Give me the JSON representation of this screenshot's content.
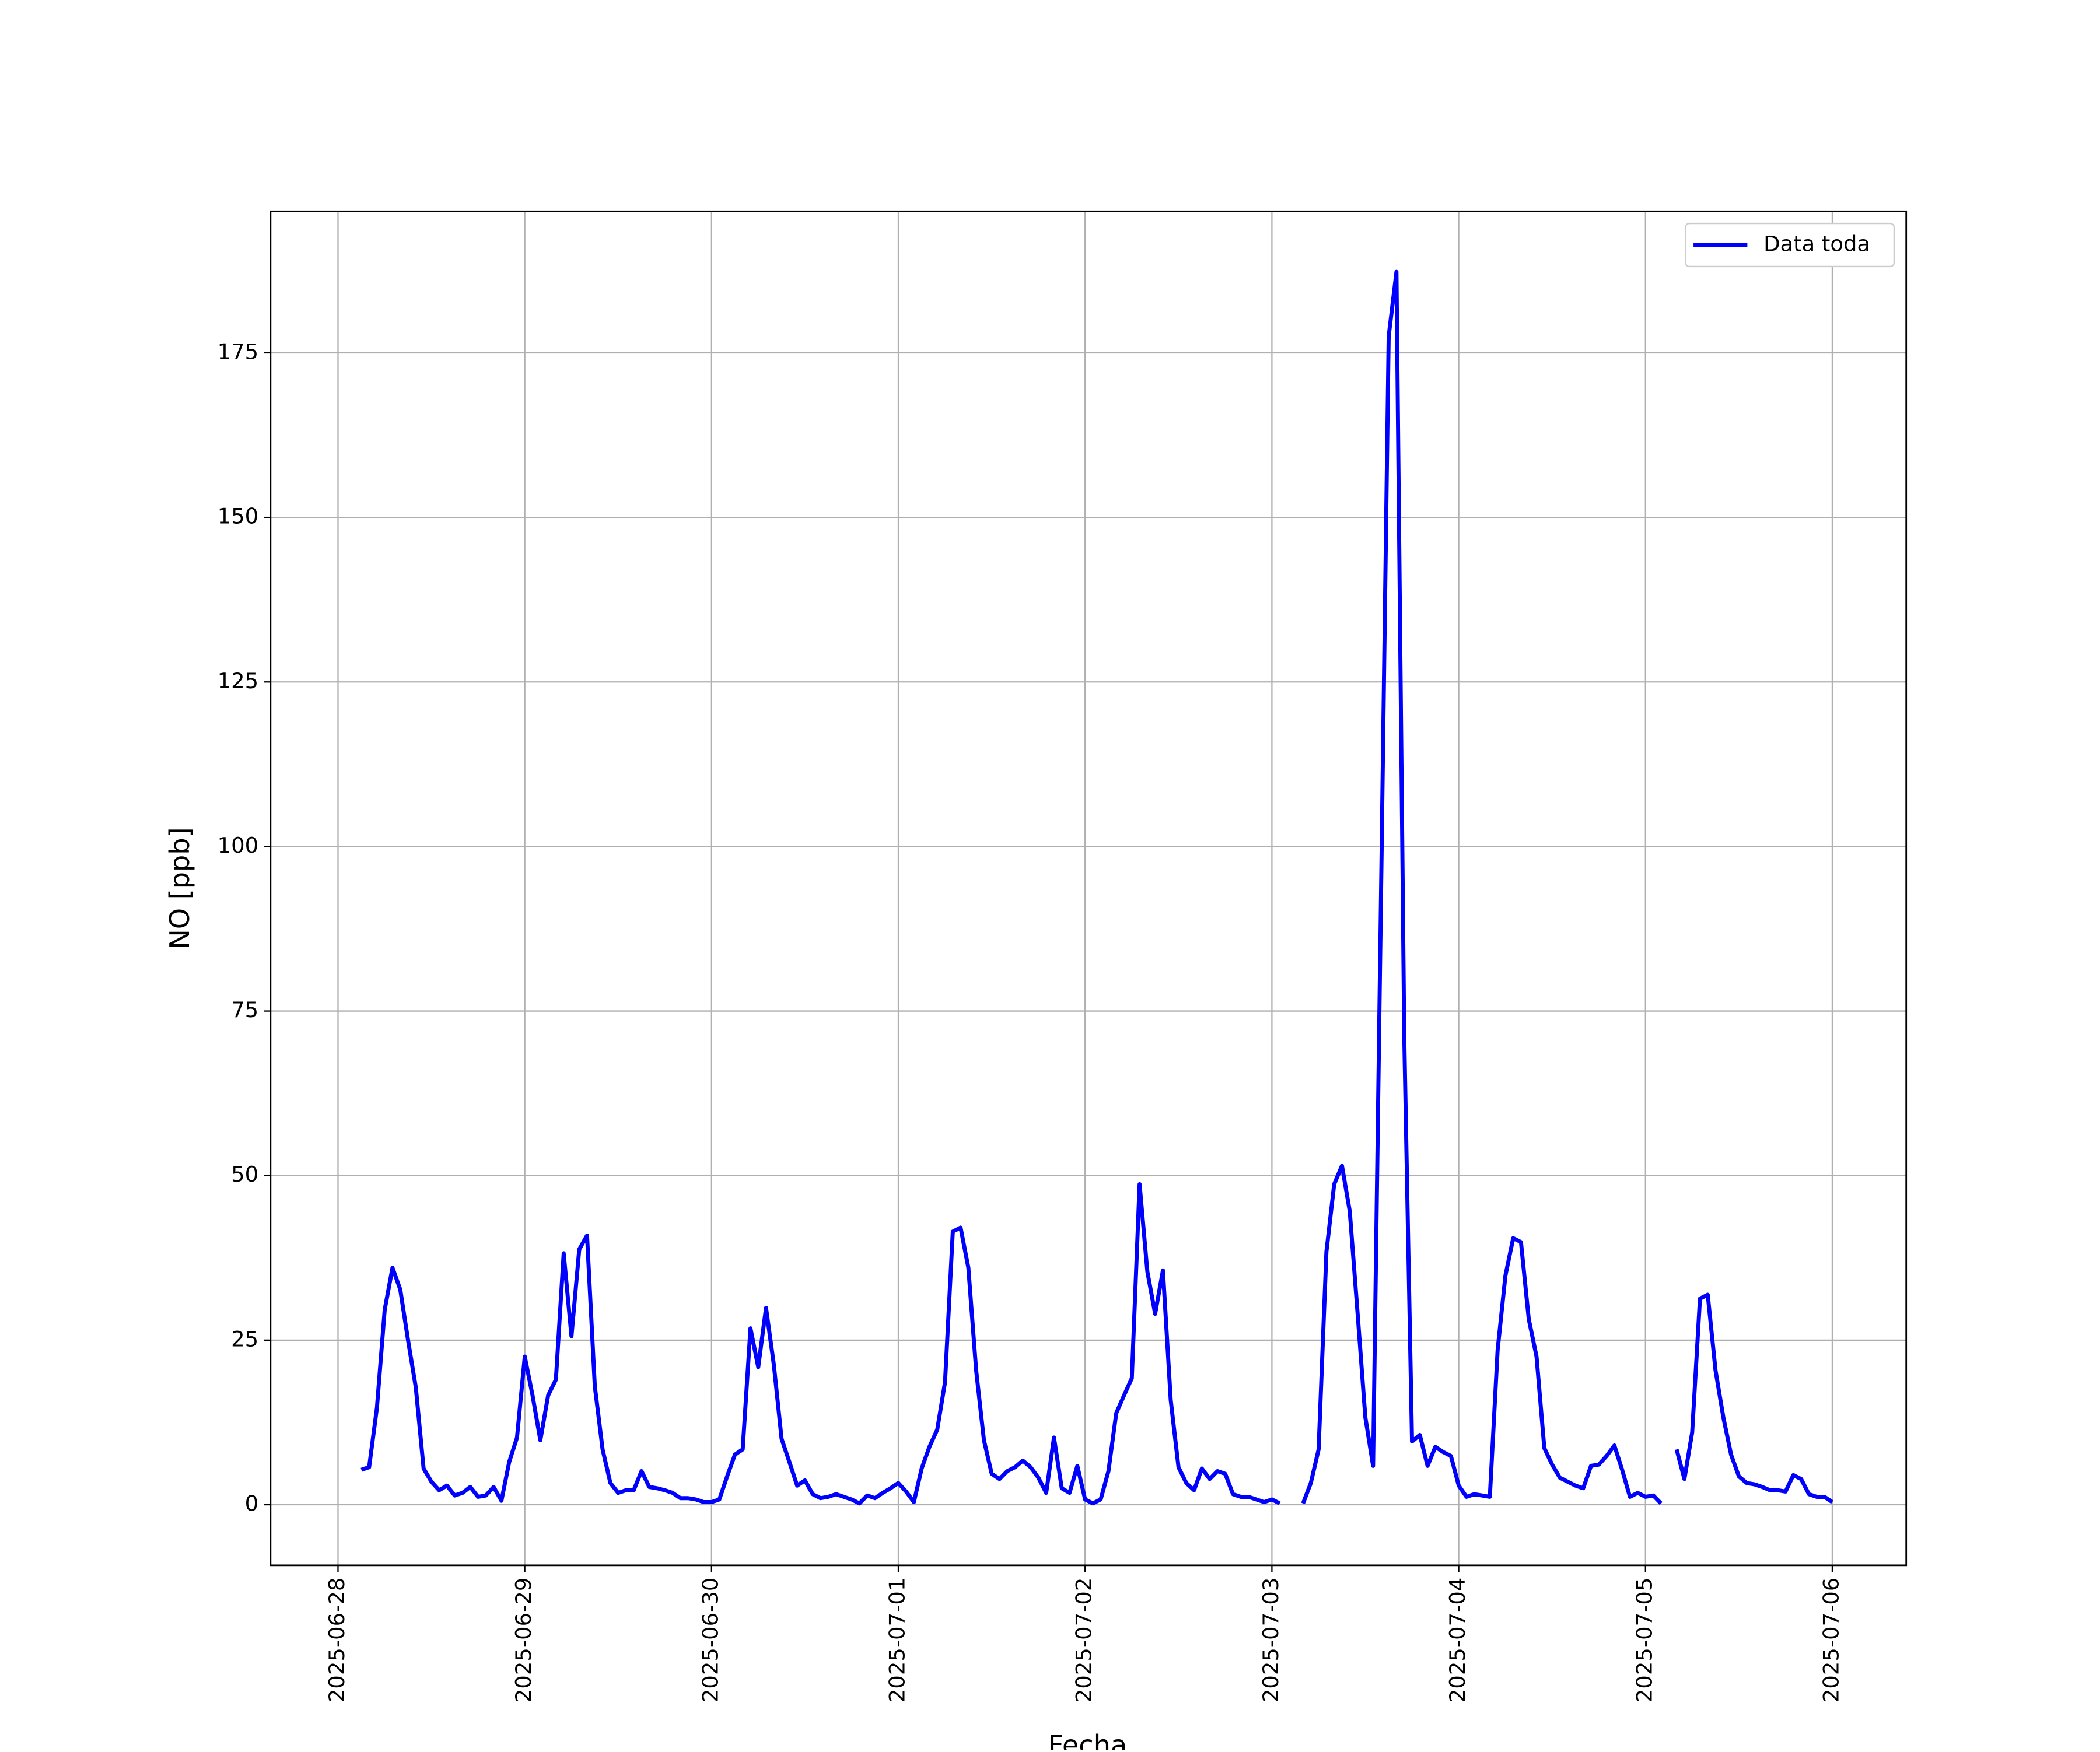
{
  "chart_data": {
    "type": "line",
    "xlabel": "Fecha",
    "ylabel": "NO [ppb]",
    "x": [
      "2025-06-28 03:00",
      "2025-06-28 04:00",
      "2025-06-28 05:00",
      "2025-06-28 06:00",
      "2025-06-28 07:00",
      "2025-06-28 08:00",
      "2025-06-28 09:00",
      "2025-06-28 10:00",
      "2025-06-28 11:00",
      "2025-06-28 12:00",
      "2025-06-28 13:00",
      "2025-06-28 14:00",
      "2025-06-28 15:00",
      "2025-06-28 16:00",
      "2025-06-28 17:00",
      "2025-06-28 18:00",
      "2025-06-28 19:00",
      "2025-06-28 20:00",
      "2025-06-28 21:00",
      "2025-06-28 22:00",
      "2025-06-28 23:00",
      "2025-06-29 00:00",
      "2025-06-29 01:00",
      "2025-06-29 02:00",
      "2025-06-29 03:00",
      "2025-06-29 04:00",
      "2025-06-29 05:00",
      "2025-06-29 06:00",
      "2025-06-29 07:00",
      "2025-06-29 08:00",
      "2025-06-29 09:00",
      "2025-06-29 10:00",
      "2025-06-29 11:00",
      "2025-06-29 12:00",
      "2025-06-29 13:00",
      "2025-06-29 14:00",
      "2025-06-29 15:00",
      "2025-06-29 16:00",
      "2025-06-29 17:00",
      "2025-06-29 18:00",
      "2025-06-29 19:00",
      "2025-06-29 20:00",
      "2025-06-29 21:00",
      "2025-06-29 22:00",
      "2025-06-29 23:00",
      "2025-06-30 00:00",
      "2025-06-30 01:00",
      "2025-06-30 02:00",
      "2025-06-30 03:00",
      "2025-06-30 04:00",
      "2025-06-30 05:00",
      "2025-06-30 06:00",
      "2025-06-30 07:00",
      "2025-06-30 08:00",
      "2025-06-30 09:00",
      "2025-06-30 10:00",
      "2025-06-30 11:00",
      "2025-06-30 12:00",
      "2025-06-30 13:00",
      "2025-06-30 14:00",
      "2025-06-30 15:00",
      "2025-06-30 16:00",
      "2025-06-30 17:00",
      "2025-06-30 18:00",
      "2025-06-30 19:00",
      "2025-06-30 20:00",
      "2025-06-30 21:00",
      "2025-06-30 22:00",
      "2025-06-30 23:00",
      "2025-07-01 00:00",
      "2025-07-01 01:00",
      "2025-07-01 02:00",
      "2025-07-01 03:00",
      "2025-07-01 04:00",
      "2025-07-01 05:00",
      "2025-07-01 06:00",
      "2025-07-01 07:00",
      "2025-07-01 08:00",
      "2025-07-01 09:00",
      "2025-07-01 10:00",
      "2025-07-01 11:00",
      "2025-07-01 12:00",
      "2025-07-01 13:00",
      "2025-07-01 14:00",
      "2025-07-01 15:00",
      "2025-07-01 16:00",
      "2025-07-01 17:00",
      "2025-07-01 18:00",
      "2025-07-01 19:00",
      "2025-07-01 20:00",
      "2025-07-01 21:00",
      "2025-07-01 22:00",
      "2025-07-01 23:00",
      "2025-07-02 00:00",
      "2025-07-02 01:00",
      "2025-07-02 02:00",
      "2025-07-02 03:00",
      "2025-07-02 04:00",
      "2025-07-02 05:00",
      "2025-07-02 06:00",
      "2025-07-02 07:00",
      "2025-07-02 08:00",
      "2025-07-02 09:00",
      "2025-07-02 10:00",
      "2025-07-02 11:00",
      "2025-07-02 12:00",
      "2025-07-02 13:00",
      "2025-07-02 14:00",
      "2025-07-02 15:00",
      "2025-07-02 16:00",
      "2025-07-02 17:00",
      "2025-07-02 18:00",
      "2025-07-02 19:00",
      "2025-07-02 20:00",
      "2025-07-02 21:00",
      "2025-07-02 22:00",
      "2025-07-02 23:00",
      "2025-07-03 00:00",
      "2025-07-03 01:00",
      "2025-07-03 02:00",
      "2025-07-03 03:00",
      "2025-07-03 04:00",
      "2025-07-03 05:00",
      "2025-07-03 06:00",
      "2025-07-03 07:00",
      "2025-07-03 08:00",
      "2025-07-03 09:00",
      "2025-07-03 10:00",
      "2025-07-03 11:00",
      "2025-07-03 12:00",
      "2025-07-03 13:00",
      "2025-07-03 14:00",
      "2025-07-03 15:00",
      "2025-07-03 16:00",
      "2025-07-03 17:00",
      "2025-07-03 18:00",
      "2025-07-03 19:00",
      "2025-07-03 20:00",
      "2025-07-03 21:00",
      "2025-07-03 22:00",
      "2025-07-03 23:00",
      "2025-07-04 00:00",
      "2025-07-04 01:00",
      "2025-07-04 02:00",
      "2025-07-04 03:00",
      "2025-07-04 04:00",
      "2025-07-04 05:00",
      "2025-07-04 06:00",
      "2025-07-04 07:00",
      "2025-07-04 08:00",
      "2025-07-04 09:00",
      "2025-07-04 10:00",
      "2025-07-04 11:00",
      "2025-07-04 12:00",
      "2025-07-04 13:00",
      "2025-07-04 14:00",
      "2025-07-04 15:00",
      "2025-07-04 16:00",
      "2025-07-04 17:00",
      "2025-07-04 18:00",
      "2025-07-04 19:00",
      "2025-07-04 20:00",
      "2025-07-04 21:00",
      "2025-07-04 22:00",
      "2025-07-04 23:00",
      "2025-07-05 00:00",
      "2025-07-05 01:00",
      "2025-07-05 02:00",
      "2025-07-05 03:00",
      "2025-07-05 04:00",
      "2025-07-05 05:00",
      "2025-07-05 06:00",
      "2025-07-05 07:00",
      "2025-07-05 08:00",
      "2025-07-05 09:00",
      "2025-07-05 10:00",
      "2025-07-05 11:00",
      "2025-07-05 12:00",
      "2025-07-05 13:00",
      "2025-07-05 14:00",
      "2025-07-05 15:00",
      "2025-07-05 16:00",
      "2025-07-05 17:00",
      "2025-07-05 18:00",
      "2025-07-05 19:00",
      "2025-07-05 20:00",
      "2025-07-05 21:00",
      "2025-07-05 22:00",
      "2025-07-05 23:00",
      "2025-07-06 00:00"
    ],
    "series": [
      {
        "name": "Data toda",
        "color": "#0000ff",
        "values": [
          5.3,
          5.7,
          14.7,
          29.6,
          36,
          32.7,
          25,
          17.8,
          5.5,
          3.5,
          2.2,
          2.9,
          1.4,
          1.8,
          2.7,
          1.2,
          1.4,
          2.7,
          0.6,
          6.5,
          10.2,
          22.5,
          16.6,
          9.8,
          16.6,
          19,
          38.2,
          25.6,
          38.8,
          40.9,
          18,
          8.4,
          3.3,
          1.8,
          2.2,
          2.2,
          5.1,
          2.7,
          2.5,
          2.2,
          1.8,
          1,
          1,
          0.8,
          0.4,
          0.4,
          0.8,
          4.3,
          7.6,
          8.4,
          26.8,
          20.9,
          29.9,
          21.3,
          10,
          6.5,
          2.9,
          3.7,
          1.6,
          1,
          1.2,
          1.6,
          1.2,
          0.8,
          0.2,
          1.4,
          1,
          1.8,
          2.5,
          3.3,
          2,
          0.4,
          5.5,
          8.8,
          11.4,
          18.6,
          41.5,
          42.1,
          36,
          20.4,
          9.8,
          4.7,
          3.9,
          5.1,
          5.7,
          6.7,
          5.7,
          4.1,
          1.8,
          10.2,
          2.5,
          1.8,
          5.9,
          0.8,
          0.2,
          0.8,
          5.1,
          13.9,
          16.6,
          19.2,
          48.7,
          35.4,
          29,
          35.6,
          15.9,
          5.7,
          3.3,
          2.2,
          5.5,
          3.9,
          5.1,
          4.7,
          1.6,
          1.2,
          1.2,
          0.8,
          0.4,
          0.8,
          0.2,
          null,
          null,
          0.2,
          3.3,
          8.4,
          38.4,
          48.7,
          51.5,
          44.6,
          29.2,
          13.3,
          5.9,
          91,
          177.5,
          187.3,
          71.2,
          9.6,
          10.6,
          5.9,
          8.8,
          8,
          7.4,
          2.9,
          1.2,
          1.6,
          1.4,
          1.2,
          23.5,
          34.8,
          40.5,
          39.9,
          28.2,
          22.5,
          8.6,
          6.1,
          4.1,
          3.5,
          2.9,
          2.5,
          5.9,
          6.1,
          7.4,
          9,
          5.3,
          1.2,
          1.8,
          1.2,
          1.4,
          0.2,
          null,
          8.4,
          3.9,
          11,
          31.3,
          31.9,
          20.4,
          13.3,
          7.6,
          4.3,
          3.3,
          3.1,
          2.7,
          2.2,
          2.2,
          2,
          4.5,
          3.9,
          1.6,
          1.2,
          1.2,
          0.4
        ]
      }
    ],
    "xlim": [
      "2025-06-27 15:20",
      "2025-07-06 09:30"
    ],
    "xticks": [
      "2025-06-28",
      "2025-06-29",
      "2025-06-30",
      "2025-07-01",
      "2025-07-02",
      "2025-07-03",
      "2025-07-04",
      "2025-07-05",
      "2025-07-06"
    ],
    "ylim": [
      -9.2,
      196.5
    ],
    "yticks": [
      0,
      25,
      50,
      75,
      100,
      125,
      150,
      175
    ],
    "grid": true,
    "legend": "upper right"
  }
}
